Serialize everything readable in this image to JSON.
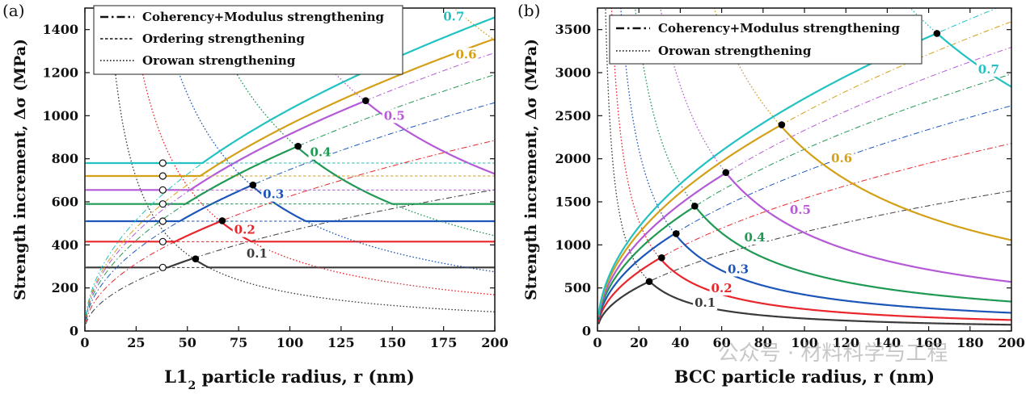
{
  "watermark": "公众号 · 材料科学与工程",
  "chart_data": [
    {
      "type": "line",
      "panel_label": "(a)",
      "xlabel_main": "L1",
      "xlabel_sub": "2",
      "xlabel_rest": " particle radius, r (nm)",
      "ylabel": "Strength increment, Δσ (MPa)",
      "xlim": [
        0,
        200
      ],
      "ylim": [
        0,
        1500
      ],
      "xticks": [
        0,
        25,
        50,
        75,
        100,
        125,
        150,
        175,
        200
      ],
      "yticks": [
        0,
        200,
        400,
        600,
        800,
        1000,
        1200,
        1400
      ],
      "legend": {
        "position": "top-left",
        "entries": [
          {
            "label": "Coherency+Modulus strengthening",
            "style": "dashdot"
          },
          {
            "label": "Ordering strengthening",
            "style": "dashed"
          },
          {
            "label": "Orowan strengthening",
            "style": "dotted"
          }
        ]
      },
      "series": [
        {
          "label": "0.1",
          "color": "#3a3a3a",
          "ordering_level": 295,
          "coherency_coeff": 46.4,
          "orowan_coeff": 17800,
          "open_point": [
            38,
            295
          ],
          "peak_point": [
            54,
            335
          ],
          "label_at": [
            84,
            345
          ]
        },
        {
          "label": "0.2",
          "color": "#e8262b",
          "ordering_level": 415,
          "coherency_coeff": 62.6,
          "orowan_coeff": 33700,
          "open_point": [
            38,
            415
          ],
          "peak_point": [
            67,
            512
          ],
          "label_at": [
            78,
            455
          ]
        },
        {
          "label": "0.3",
          "color": "#1c56b8",
          "ordering_level": 510,
          "coherency_coeff": 75.0,
          "orowan_coeff": 55000,
          "open_point": [
            38,
            510
          ],
          "peak_point": [
            82,
            678
          ],
          "label_at": [
            92,
            620
          ]
        },
        {
          "label": "0.4",
          "color": "#1f9953",
          "ordering_level": 590,
          "coherency_coeff": 84.2,
          "orowan_coeff": 88500,
          "open_point": [
            38,
            590
          ],
          "peak_point": [
            104,
            858
          ],
          "label_at": [
            115,
            815
          ]
        },
        {
          "label": "0.5",
          "color": "#b55ad6",
          "ordering_level": 655,
          "coherency_coeff": 91.4,
          "orowan_coeff": 146000,
          "open_point": [
            38,
            655
          ],
          "peak_point": [
            137,
            1070
          ],
          "label_at": [
            151,
            985
          ]
        },
        {
          "label": "0.6",
          "color": "#d4a017",
          "ordering_level": 720,
          "coherency_coeff": 96.0,
          "orowan_coeff": 270000,
          "open_point": [
            38,
            720
          ],
          "label_at": [
            186,
            1270
          ]
        },
        {
          "label": "0.7",
          "color": "#22c2c2",
          "ordering_level": 780,
          "coherency_coeff": 103.0,
          "orowan_coeff": 540000,
          "open_point": [
            38,
            780
          ],
          "label_at": [
            180,
            1445
          ]
        }
      ]
    },
    {
      "type": "line",
      "panel_label": "(b)",
      "xlabel": "BCC particle radius, r (nm)",
      "ylabel": "Strength increment, Δσ (MPa)",
      "xlim": [
        0,
        200
      ],
      "ylim": [
        0,
        3750
      ],
      "xticks": [
        0,
        20,
        40,
        60,
        80,
        100,
        120,
        140,
        160,
        180,
        200
      ],
      "yticks": [
        0,
        500,
        1000,
        1500,
        2000,
        2500,
        3000,
        3500
      ],
      "legend": {
        "position": "top-left",
        "entries": [
          {
            "label": "Coherency+Modulus strengthening",
            "style": "dashdot"
          },
          {
            "label": "Orowan strengthening",
            "style": "dotted"
          }
        ]
      },
      "series": [
        {
          "label": "0.1",
          "color": "#3a3a3a",
          "coherency_coeff": 115,
          "orowan_coeff": 14500,
          "peak_point": [
            25,
            575
          ],
          "label_at": [
            52,
            290
          ]
        },
        {
          "label": "0.2",
          "color": "#e8262b",
          "coherency_coeff": 154,
          "orowan_coeff": 25500,
          "peak_point": [
            31,
            850
          ],
          "label_at": [
            60,
            460
          ]
        },
        {
          "label": "0.3",
          "color": "#1c56b8",
          "coherency_coeff": 185,
          "orowan_coeff": 42200,
          "peak_point": [
            38,
            1130
          ],
          "label_at": [
            68,
            680
          ]
        },
        {
          "label": "0.4",
          "color": "#1f9953",
          "coherency_coeff": 211,
          "orowan_coeff": 68300,
          "peak_point": [
            47,
            1450
          ],
          "label_at": [
            76,
            1050
          ]
        },
        {
          "label": "0.5",
          "color": "#b55ad6",
          "coherency_coeff": 233,
          "orowan_coeff": 114000,
          "peak_point": [
            62,
            1840
          ],
          "label_at": [
            98,
            1370
          ]
        },
        {
          "label": "0.6",
          "color": "#d4a017",
          "coherency_coeff": 254,
          "orowan_coeff": 211000,
          "peak_point": [
            89,
            2395
          ],
          "label_at": [
            118,
            1970
          ]
        },
        {
          "label": "0.7",
          "color": "#22c2c2",
          "coherency_coeff": 270,
          "orowan_coeff": 567000,
          "peak_point": [
            164,
            3455
          ],
          "label_at": [
            189,
            3000
          ]
        }
      ]
    }
  ]
}
